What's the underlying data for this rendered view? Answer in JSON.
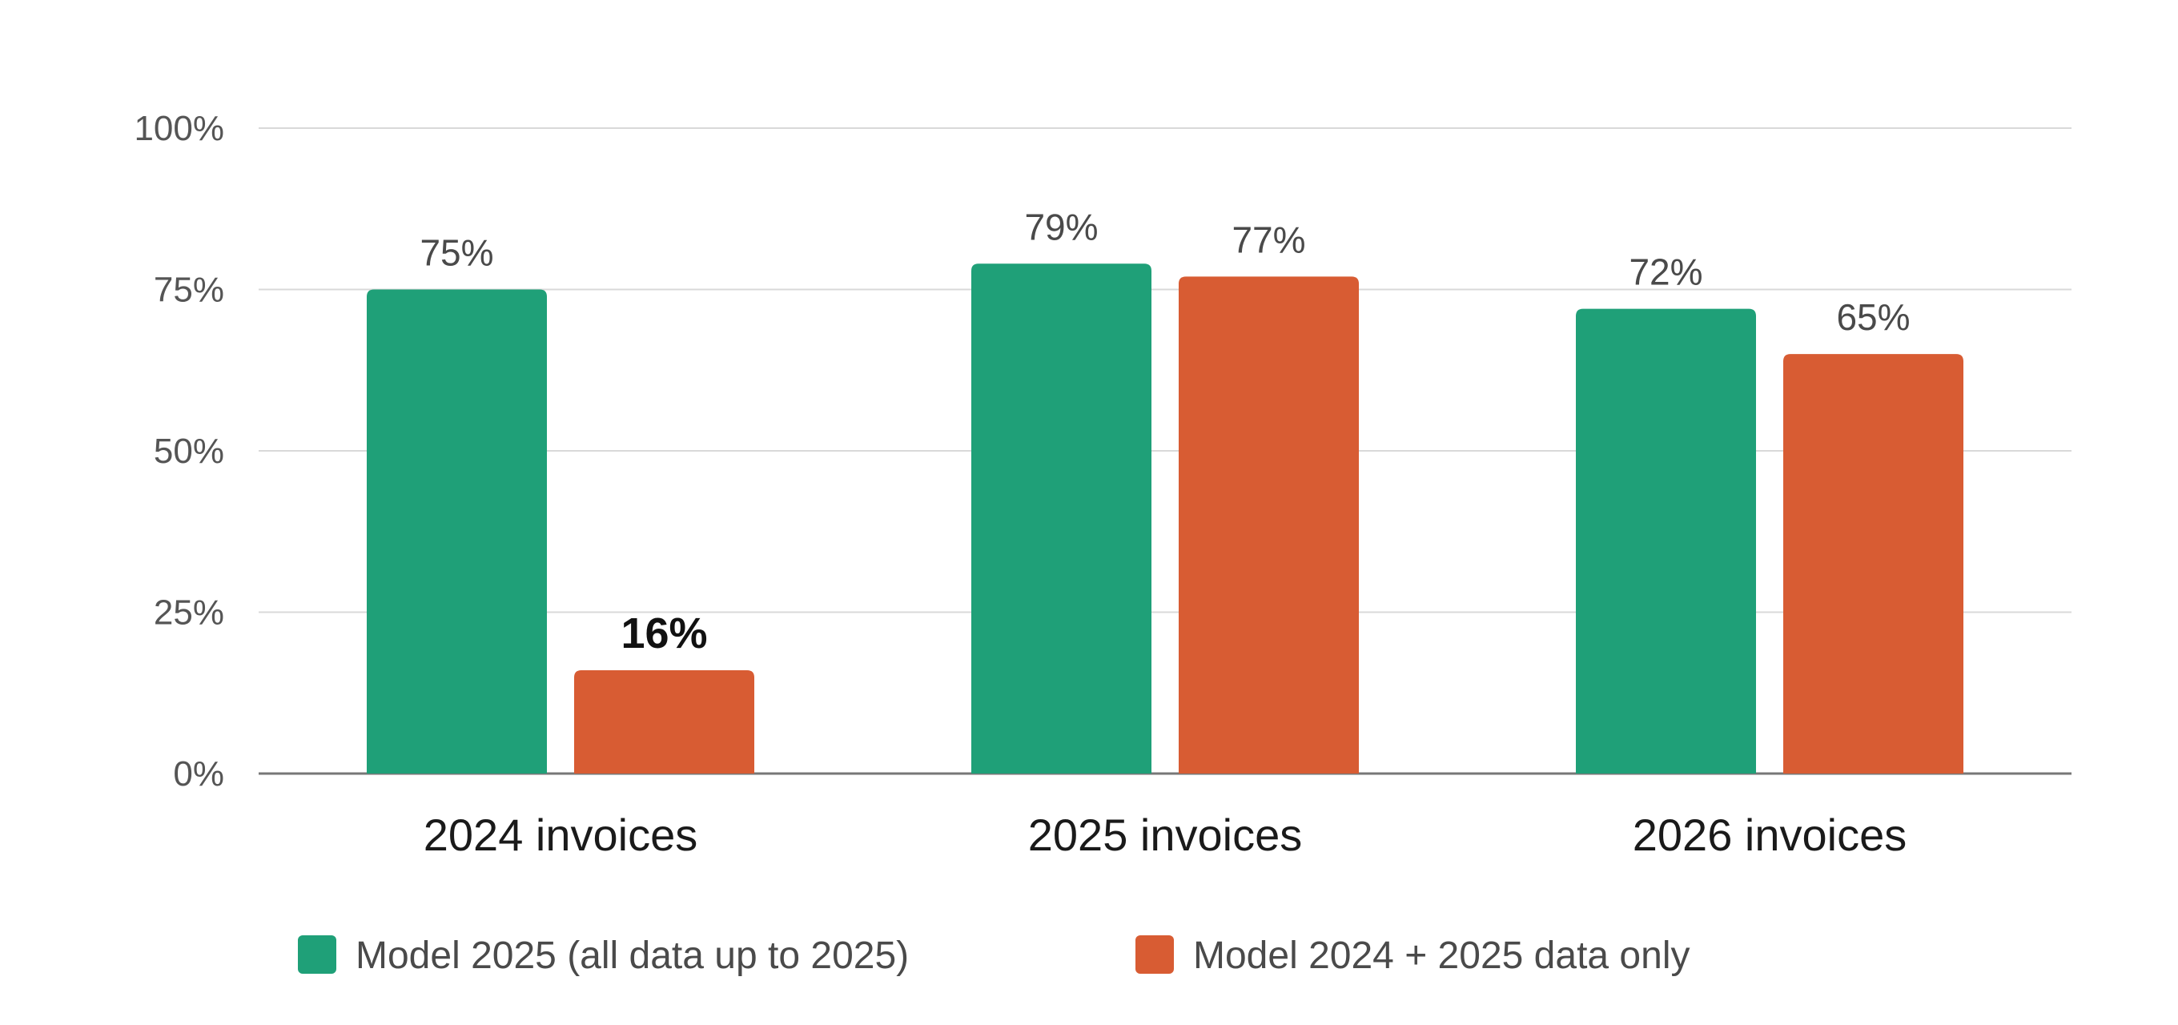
{
  "chart_data": {
    "type": "bar",
    "title": "",
    "xlabel": "",
    "ylabel": "",
    "categories": [
      "2024 invoices",
      "2025 invoices",
      "2026 invoices"
    ],
    "series": [
      {
        "name": "Model 2025 (all data up to 2025)",
        "color": "#1fa078",
        "values": [
          75,
          79,
          72
        ],
        "labels": [
          "75%",
          "79%",
          "72%"
        ]
      },
      {
        "name": "Model 2024 + 2025 data only",
        "color": "#d85c33",
        "values": [
          16,
          77,
          65
        ],
        "labels": [
          "16%",
          "77%",
          "65%"
        ]
      }
    ],
    "emphasized_label": {
      "series": 1,
      "category": 0
    },
    "ylim": [
      0,
      100
    ],
    "yticks": [
      0,
      25,
      50,
      75,
      100
    ],
    "ytick_labels": [
      "0%",
      "25%",
      "50%",
      "75%",
      "100%"
    ],
    "grid": true,
    "legend": "bottom"
  }
}
